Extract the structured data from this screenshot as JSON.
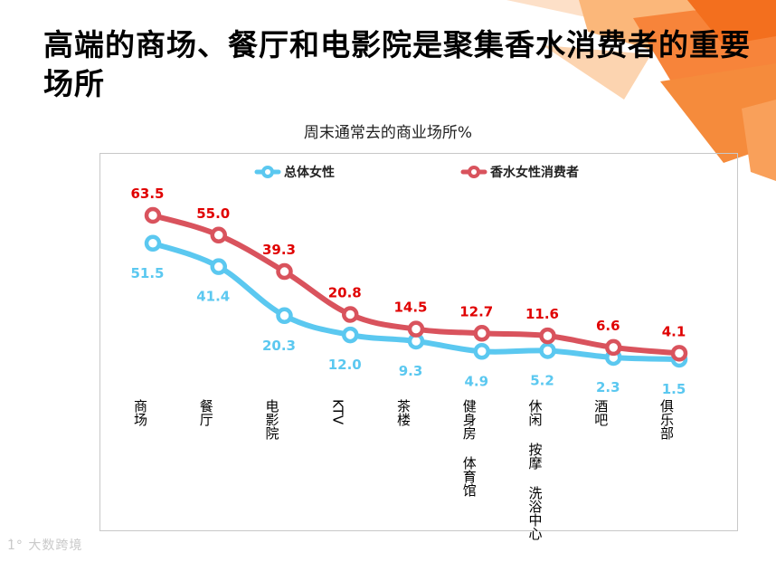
{
  "page": {
    "title": "高端的商场、餐厅和电影院是聚集香水消费者的重要场所",
    "watermark": "1̀° 大数跨境"
  },
  "chart_data": {
    "type": "line",
    "title": "周末通常去的商业场所%",
    "categories": [
      "商场",
      "餐厅",
      "电影院",
      "KTV",
      "茶楼",
      "健身房/体育馆",
      "休闲/按摩/洗浴中心",
      "酒吧",
      "俱乐部"
    ],
    "category_display": [
      "商场",
      "餐厅",
      "电影院",
      "KTV",
      "茶楼",
      "健身房 体育馆",
      "休闲 按摩 洗浴中心",
      "酒吧",
      "俱乐部"
    ],
    "series": [
      {
        "name": "总体女性",
        "color": "#5bc8f0",
        "label_color": "#5bc8f0",
        "values": [
          51.5,
          41.4,
          20.3,
          12.0,
          9.3,
          4.9,
          5.2,
          2.3,
          1.5
        ],
        "labels": [
          "51.5",
          "41.4",
          "20.3",
          "12.0",
          "9.3",
          "4.9",
          "5.2",
          "2.3",
          "1.5"
        ]
      },
      {
        "name": "香水女性消费者",
        "color": "#d9535d",
        "label_color": "#e00000",
        "values": [
          63.5,
          55.0,
          39.3,
          20.8,
          14.5,
          12.7,
          11.6,
          6.6,
          4.1
        ],
        "labels": [
          "63.5",
          "55.0",
          "39.3",
          "20.8",
          "14.5",
          "12.7",
          "11.6",
          "6.6",
          "4.1"
        ]
      }
    ],
    "ylim": [
      0,
      70
    ],
    "legend": "top",
    "grid": false
  }
}
